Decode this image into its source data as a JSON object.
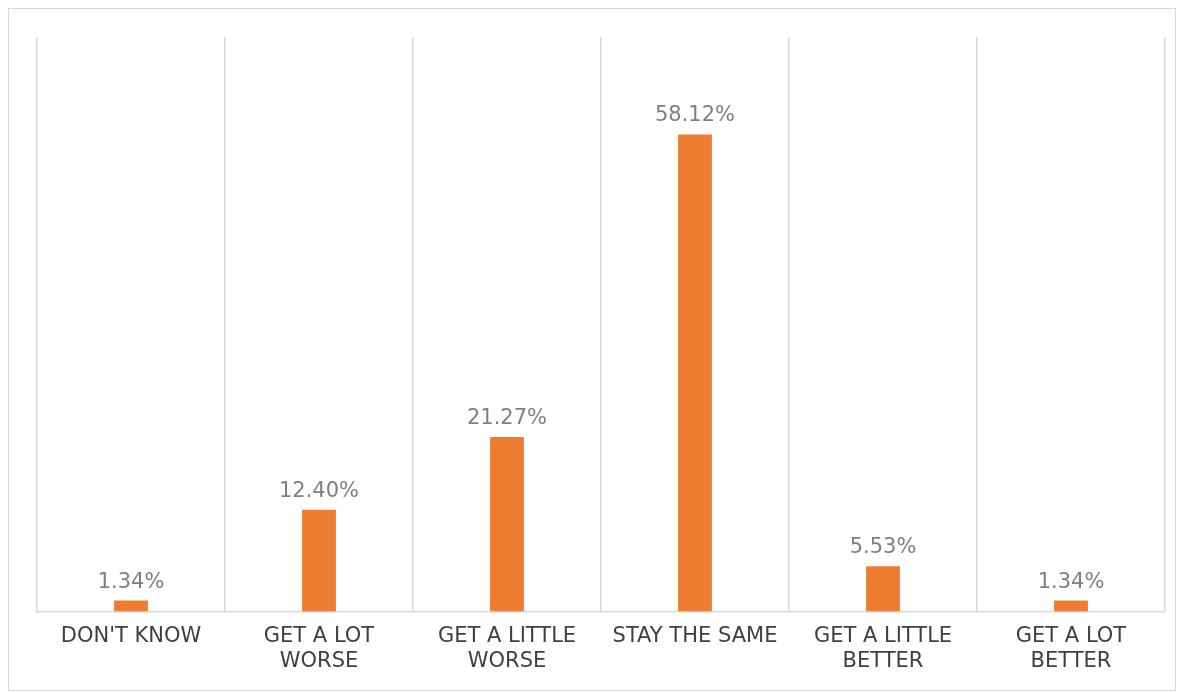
{
  "chart_data": {
    "type": "bar",
    "categories": [
      "DON'T KNOW",
      "GET A LOT WORSE",
      "GET A LITTLE WORSE",
      "STAY THE SAME",
      "GET A LITTLE BETTER",
      "GET A LOT BETTER"
    ],
    "values": [
      1.34,
      12.4,
      21.27,
      58.12,
      5.53,
      1.34
    ],
    "value_labels": [
      "1.34%",
      "12.40%",
      "21.27%",
      "58.12%",
      "5.53%",
      "1.34%"
    ],
    "color": "#ed7d31",
    "grid": "x",
    "legend": false
  }
}
